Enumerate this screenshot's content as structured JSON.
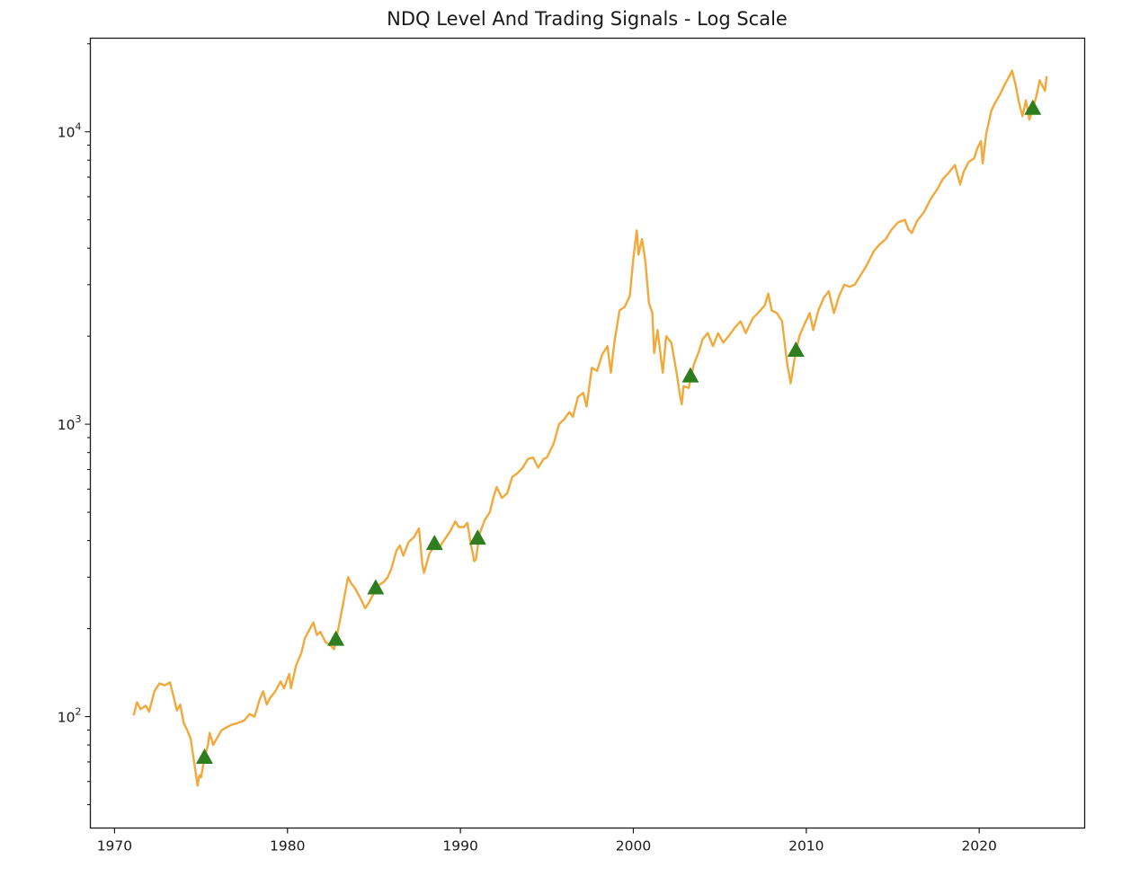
{
  "chart_data": {
    "type": "line",
    "title": "NDQ Level And Trading Signals - Log Scale",
    "xlabel": "",
    "ylabel": "",
    "yscale": "log",
    "xlim": [
      1968.6,
      2026.1
    ],
    "ylim": [
      41.6,
      20900
    ],
    "grid": false,
    "legend": null,
    "x_ticks": [
      "1970",
      "1980",
      "1990",
      "2000",
      "2010",
      "2020"
    ],
    "y_ticks": [
      {
        "base": "10",
        "exp": "2",
        "value": 100
      },
      {
        "base": "10",
        "exp": "3",
        "value": 1000
      },
      {
        "base": "10",
        "exp": "4",
        "value": 10000
      }
    ],
    "series": [
      {
        "name": "NDQ Level",
        "color": "#f2a93b",
        "points": [
          [
            1971.1,
            101
          ],
          [
            1971.3,
            112
          ],
          [
            1971.5,
            106
          ],
          [
            1971.8,
            109
          ],
          [
            1972.0,
            104
          ],
          [
            1972.3,
            122
          ],
          [
            1972.6,
            130
          ],
          [
            1972.9,
            128
          ],
          [
            1973.2,
            131
          ],
          [
            1973.4,
            118
          ],
          [
            1973.6,
            105
          ],
          [
            1973.8,
            110
          ],
          [
            1974.0,
            95
          ],
          [
            1974.2,
            90
          ],
          [
            1974.4,
            84
          ],
          [
            1974.6,
            70
          ],
          [
            1974.8,
            58
          ],
          [
            1974.9,
            63
          ],
          [
            1975.0,
            62
          ],
          [
            1975.2,
            72
          ],
          [
            1975.4,
            80
          ],
          [
            1975.5,
            88
          ],
          [
            1975.7,
            80
          ],
          [
            1975.9,
            84
          ],
          [
            1976.2,
            90
          ],
          [
            1976.5,
            92
          ],
          [
            1976.8,
            94
          ],
          [
            1977.1,
            95
          ],
          [
            1977.5,
            97
          ],
          [
            1977.8,
            102
          ],
          [
            1978.1,
            100
          ],
          [
            1978.4,
            115
          ],
          [
            1978.6,
            122
          ],
          [
            1978.8,
            110
          ],
          [
            1979.0,
            116
          ],
          [
            1979.3,
            122
          ],
          [
            1979.6,
            132
          ],
          [
            1979.8,
            125
          ],
          [
            1980.1,
            140
          ],
          [
            1980.2,
            125
          ],
          [
            1980.5,
            150
          ],
          [
            1980.8,
            165
          ],
          [
            1981.0,
            185
          ],
          [
            1981.3,
            200
          ],
          [
            1981.5,
            210
          ],
          [
            1981.7,
            190
          ],
          [
            1981.9,
            195
          ],
          [
            1982.2,
            180
          ],
          [
            1982.5,
            175
          ],
          [
            1982.7,
            170
          ],
          [
            1982.9,
            195
          ],
          [
            1983.2,
            240
          ],
          [
            1983.5,
            300
          ],
          [
            1983.7,
            285
          ],
          [
            1983.9,
            275
          ],
          [
            1984.2,
            255
          ],
          [
            1984.5,
            235
          ],
          [
            1984.7,
            245
          ],
          [
            1985.0,
            265
          ],
          [
            1985.3,
            282
          ],
          [
            1985.6,
            290
          ],
          [
            1985.8,
            300
          ],
          [
            1986.0,
            320
          ],
          [
            1986.3,
            370
          ],
          [
            1986.5,
            385
          ],
          [
            1986.7,
            355
          ],
          [
            1987.0,
            395
          ],
          [
            1987.3,
            410
          ],
          [
            1987.6,
            440
          ],
          [
            1987.8,
            330
          ],
          [
            1987.9,
            310
          ],
          [
            1988.2,
            360
          ],
          [
            1988.5,
            385
          ],
          [
            1988.8,
            380
          ],
          [
            1989.1,
            405
          ],
          [
            1989.4,
            430
          ],
          [
            1989.7,
            465
          ],
          [
            1989.9,
            445
          ],
          [
            1990.2,
            445
          ],
          [
            1990.4,
            460
          ],
          [
            1990.6,
            390
          ],
          [
            1990.8,
            340
          ],
          [
            1990.9,
            345
          ],
          [
            1991.1,
            420
          ],
          [
            1991.4,
            470
          ],
          [
            1991.7,
            500
          ],
          [
            1991.9,
            560
          ],
          [
            1992.1,
            610
          ],
          [
            1992.4,
            560
          ],
          [
            1992.7,
            580
          ],
          [
            1993.0,
            660
          ],
          [
            1993.3,
            680
          ],
          [
            1993.6,
            710
          ],
          [
            1993.9,
            760
          ],
          [
            1994.2,
            770
          ],
          [
            1994.5,
            710
          ],
          [
            1994.8,
            760
          ],
          [
            1995.0,
            770
          ],
          [
            1995.4,
            860
          ],
          [
            1995.7,
            1000
          ],
          [
            1996.0,
            1040
          ],
          [
            1996.3,
            1100
          ],
          [
            1996.5,
            1060
          ],
          [
            1996.8,
            1240
          ],
          [
            1997.1,
            1280
          ],
          [
            1997.3,
            1150
          ],
          [
            1997.6,
            1560
          ],
          [
            1997.9,
            1520
          ],
          [
            1998.2,
            1730
          ],
          [
            1998.5,
            1850
          ],
          [
            1998.7,
            1500
          ],
          [
            1998.9,
            1900
          ],
          [
            1999.2,
            2450
          ],
          [
            1999.5,
            2520
          ],
          [
            1999.8,
            2750
          ],
          [
            2000.0,
            3700
          ],
          [
            2000.2,
            4600
          ],
          [
            2000.3,
            3800
          ],
          [
            2000.5,
            4300
          ],
          [
            2000.7,
            3600
          ],
          [
            2000.9,
            2600
          ],
          [
            2001.1,
            2400
          ],
          [
            2001.2,
            1750
          ],
          [
            2001.4,
            2100
          ],
          [
            2001.7,
            1500
          ],
          [
            2001.9,
            2000
          ],
          [
            2002.2,
            1900
          ],
          [
            2002.5,
            1500
          ],
          [
            2002.7,
            1250
          ],
          [
            2002.8,
            1170
          ],
          [
            2002.9,
            1350
          ],
          [
            2003.2,
            1330
          ],
          [
            2003.5,
            1600
          ],
          [
            2003.8,
            1780
          ],
          [
            2004.0,
            1950
          ],
          [
            2004.3,
            2050
          ],
          [
            2004.6,
            1850
          ],
          [
            2004.9,
            2050
          ],
          [
            2005.2,
            1900
          ],
          [
            2005.5,
            2000
          ],
          [
            2005.9,
            2150
          ],
          [
            2006.2,
            2250
          ],
          [
            2006.5,
            2050
          ],
          [
            2006.9,
            2300
          ],
          [
            2007.2,
            2400
          ],
          [
            2007.6,
            2550
          ],
          [
            2007.8,
            2800
          ],
          [
            2008.0,
            2450
          ],
          [
            2008.3,
            2400
          ],
          [
            2008.6,
            2250
          ],
          [
            2008.9,
            1600
          ],
          [
            2009.1,
            1380
          ],
          [
            2009.3,
            1650
          ],
          [
            2009.6,
            2000
          ],
          [
            2009.9,
            2200
          ],
          [
            2010.2,
            2400
          ],
          [
            2010.4,
            2100
          ],
          [
            2010.7,
            2450
          ],
          [
            2011.0,
            2700
          ],
          [
            2011.3,
            2850
          ],
          [
            2011.6,
            2400
          ],
          [
            2011.9,
            2750
          ],
          [
            2012.2,
            3000
          ],
          [
            2012.5,
            2950
          ],
          [
            2012.8,
            3000
          ],
          [
            2013.1,
            3200
          ],
          [
            2013.5,
            3500
          ],
          [
            2013.9,
            3900
          ],
          [
            2014.2,
            4100
          ],
          [
            2014.6,
            4300
          ],
          [
            2014.9,
            4600
          ],
          [
            2015.3,
            4900
          ],
          [
            2015.7,
            5000
          ],
          [
            2015.9,
            4650
          ],
          [
            2016.1,
            4500
          ],
          [
            2016.4,
            4950
          ],
          [
            2016.8,
            5300
          ],
          [
            2017.2,
            5900
          ],
          [
            2017.6,
            6400
          ],
          [
            2017.9,
            6900
          ],
          [
            2018.2,
            7200
          ],
          [
            2018.6,
            7700
          ],
          [
            2018.9,
            6600
          ],
          [
            2019.1,
            7300
          ],
          [
            2019.4,
            7900
          ],
          [
            2019.7,
            8100
          ],
          [
            2019.9,
            8800
          ],
          [
            2020.1,
            9300
          ],
          [
            2020.2,
            7800
          ],
          [
            2020.4,
            9800
          ],
          [
            2020.7,
            11800
          ],
          [
            2020.9,
            12500
          ],
          [
            2021.2,
            13400
          ],
          [
            2021.5,
            14600
          ],
          [
            2021.8,
            15700
          ],
          [
            2021.9,
            16200
          ],
          [
            2022.1,
            14500
          ],
          [
            2022.3,
            12600
          ],
          [
            2022.5,
            11300
          ],
          [
            2022.7,
            12800
          ],
          [
            2022.9,
            11000
          ],
          [
            2023.1,
            12000
          ],
          [
            2023.3,
            13200
          ],
          [
            2023.5,
            15000
          ],
          [
            2023.8,
            13800
          ],
          [
            2023.9,
            15500
          ]
        ]
      },
      {
        "name": "Trading Signals",
        "type": "scatter",
        "marker": "triangle-up",
        "color": "#2e7d1e",
        "points": [
          [
            1975.2,
            73
          ],
          [
            1982.8,
            185
          ],
          [
            1985.1,
            277
          ],
          [
            1988.5,
            393
          ],
          [
            1991.0,
            410
          ],
          [
            2003.3,
            1470
          ],
          [
            2009.4,
            1800
          ],
          [
            2023.1,
            12100
          ]
        ]
      }
    ]
  }
}
